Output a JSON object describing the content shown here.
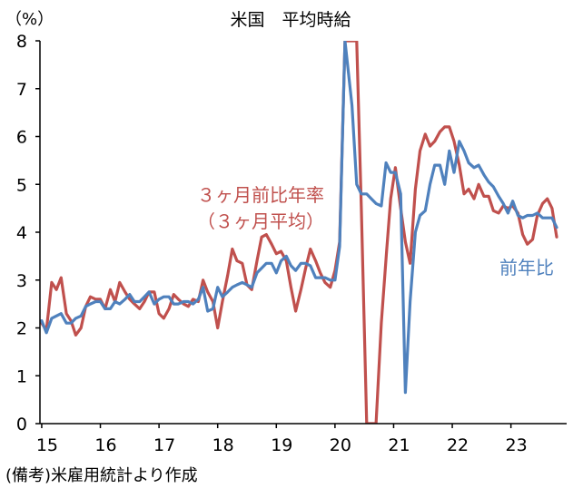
{
  "chart_data": {
    "type": "line",
    "title": "米国　平均時給",
    "ylabel": "（%）",
    "source_note": "(備考)米雇用統計より作成",
    "ylim": [
      0,
      8
    ],
    "yticks": [
      "0",
      "1",
      "2",
      "3",
      "4",
      "5",
      "6",
      "7",
      "8"
    ],
    "xlim": [
      2015,
      2023.95
    ],
    "xticks": [
      {
        "x": 2015,
        "label": "15"
      },
      {
        "x": 2016,
        "label": "16"
      },
      {
        "x": 2017,
        "label": "17"
      },
      {
        "x": 2018,
        "label": "18"
      },
      {
        "x": 2019,
        "label": "19"
      },
      {
        "x": 2020,
        "label": "20"
      },
      {
        "x": 2021,
        "label": "21"
      },
      {
        "x": 2022,
        "label": "22"
      },
      {
        "x": 2023,
        "label": "23"
      }
    ],
    "grid": false,
    "series": [
      {
        "name": "３ヶ月前比年率（３ヶ月平均）",
        "label_lines": [
          "３ヶ月前比年率",
          "（３ヶ月平均）"
        ],
        "color": "#C0504D",
        "points": [
          [
            2015.0,
            2.1
          ],
          [
            2015.08,
            1.95
          ],
          [
            2015.17,
            2.95
          ],
          [
            2015.25,
            2.8
          ],
          [
            2015.33,
            3.05
          ],
          [
            2015.42,
            2.3
          ],
          [
            2015.5,
            2.15
          ],
          [
            2015.58,
            1.85
          ],
          [
            2015.67,
            2.0
          ],
          [
            2015.75,
            2.45
          ],
          [
            2015.83,
            2.65
          ],
          [
            2015.92,
            2.6
          ],
          [
            2016.0,
            2.6
          ],
          [
            2016.08,
            2.4
          ],
          [
            2016.17,
            2.8
          ],
          [
            2016.25,
            2.55
          ],
          [
            2016.33,
            2.95
          ],
          [
            2016.42,
            2.75
          ],
          [
            2016.5,
            2.6
          ],
          [
            2016.58,
            2.5
          ],
          [
            2016.67,
            2.4
          ],
          [
            2016.75,
            2.55
          ],
          [
            2016.83,
            2.75
          ],
          [
            2016.92,
            2.75
          ],
          [
            2017.0,
            2.3
          ],
          [
            2017.08,
            2.2
          ],
          [
            2017.17,
            2.4
          ],
          [
            2017.25,
            2.7
          ],
          [
            2017.33,
            2.6
          ],
          [
            2017.42,
            2.5
          ],
          [
            2017.5,
            2.45
          ],
          [
            2017.58,
            2.6
          ],
          [
            2017.67,
            2.55
          ],
          [
            2017.75,
            3.0
          ],
          [
            2017.83,
            2.75
          ],
          [
            2017.92,
            2.55
          ],
          [
            2018.0,
            2.0
          ],
          [
            2018.08,
            2.55
          ],
          [
            2018.17,
            3.1
          ],
          [
            2018.25,
            3.65
          ],
          [
            2018.33,
            3.4
          ],
          [
            2018.42,
            3.35
          ],
          [
            2018.5,
            2.9
          ],
          [
            2018.58,
            2.8
          ],
          [
            2018.67,
            3.4
          ],
          [
            2018.75,
            3.9
          ],
          [
            2018.83,
            3.95
          ],
          [
            2018.92,
            3.75
          ],
          [
            2019.0,
            3.55
          ],
          [
            2019.08,
            3.6
          ],
          [
            2019.17,
            3.4
          ],
          [
            2019.25,
            2.85
          ],
          [
            2019.33,
            2.35
          ],
          [
            2019.42,
            2.8
          ],
          [
            2019.5,
            3.25
          ],
          [
            2019.58,
            3.65
          ],
          [
            2019.67,
            3.4
          ],
          [
            2019.75,
            3.15
          ],
          [
            2019.83,
            2.95
          ],
          [
            2019.92,
            2.85
          ],
          [
            2020.0,
            3.2
          ],
          [
            2020.08,
            3.8
          ],
          [
            2020.17,
            8.0
          ],
          [
            2020.29,
            8.0
          ],
          [
            2020.37,
            8.0
          ],
          [
            2020.45,
            4.5
          ],
          [
            2020.54,
            0.0
          ],
          [
            2020.7,
            0.0
          ],
          [
            2020.79,
            2.1
          ],
          [
            2020.88,
            3.6
          ],
          [
            2020.95,
            4.7
          ],
          [
            2021.03,
            5.35
          ],
          [
            2021.12,
            4.5
          ],
          [
            2021.2,
            3.8
          ],
          [
            2021.28,
            3.35
          ],
          [
            2021.37,
            4.9
          ],
          [
            2021.45,
            5.7
          ],
          [
            2021.54,
            6.05
          ],
          [
            2021.62,
            5.8
          ],
          [
            2021.7,
            5.9
          ],
          [
            2021.79,
            6.1
          ],
          [
            2021.87,
            6.2
          ],
          [
            2021.95,
            6.2
          ],
          [
            2022.03,
            5.9
          ],
          [
            2022.12,
            5.4
          ],
          [
            2022.2,
            4.8
          ],
          [
            2022.28,
            4.9
          ],
          [
            2022.37,
            4.7
          ],
          [
            2022.45,
            5.0
          ],
          [
            2022.54,
            4.75
          ],
          [
            2022.62,
            4.75
          ],
          [
            2022.7,
            4.45
          ],
          [
            2022.79,
            4.4
          ],
          [
            2022.87,
            4.55
          ],
          [
            2022.95,
            4.5
          ],
          [
            2023.03,
            4.55
          ],
          [
            2023.12,
            4.4
          ],
          [
            2023.2,
            3.95
          ],
          [
            2023.28,
            3.75
          ],
          [
            2023.37,
            3.85
          ],
          [
            2023.45,
            4.35
          ],
          [
            2023.54,
            4.6
          ],
          [
            2023.62,
            4.7
          ],
          [
            2023.7,
            4.5
          ],
          [
            2023.78,
            3.9
          ]
        ]
      },
      {
        "name": "前年比",
        "label_lines": [
          "前年比"
        ],
        "color": "#4F81BD",
        "points": [
          [
            2015.0,
            2.15
          ],
          [
            2015.08,
            1.9
          ],
          [
            2015.17,
            2.2
          ],
          [
            2015.25,
            2.25
          ],
          [
            2015.33,
            2.3
          ],
          [
            2015.42,
            2.1
          ],
          [
            2015.5,
            2.1
          ],
          [
            2015.58,
            2.2
          ],
          [
            2015.67,
            2.25
          ],
          [
            2015.75,
            2.45
          ],
          [
            2015.83,
            2.5
          ],
          [
            2015.92,
            2.55
          ],
          [
            2016.0,
            2.55
          ],
          [
            2016.08,
            2.4
          ],
          [
            2016.17,
            2.4
          ],
          [
            2016.25,
            2.55
          ],
          [
            2016.33,
            2.5
          ],
          [
            2016.42,
            2.6
          ],
          [
            2016.5,
            2.7
          ],
          [
            2016.58,
            2.55
          ],
          [
            2016.67,
            2.55
          ],
          [
            2016.75,
            2.65
          ],
          [
            2016.83,
            2.75
          ],
          [
            2016.92,
            2.5
          ],
          [
            2017.0,
            2.6
          ],
          [
            2017.08,
            2.65
          ],
          [
            2017.17,
            2.65
          ],
          [
            2017.25,
            2.5
          ],
          [
            2017.33,
            2.5
          ],
          [
            2017.42,
            2.55
          ],
          [
            2017.5,
            2.55
          ],
          [
            2017.58,
            2.5
          ],
          [
            2017.67,
            2.6
          ],
          [
            2017.75,
            2.85
          ],
          [
            2017.83,
            2.35
          ],
          [
            2017.92,
            2.4
          ],
          [
            2018.0,
            2.85
          ],
          [
            2018.08,
            2.65
          ],
          [
            2018.17,
            2.75
          ],
          [
            2018.25,
            2.85
          ],
          [
            2018.33,
            2.9
          ],
          [
            2018.42,
            2.95
          ],
          [
            2018.5,
            2.9
          ],
          [
            2018.58,
            2.85
          ],
          [
            2018.67,
            3.15
          ],
          [
            2018.75,
            3.25
          ],
          [
            2018.83,
            3.35
          ],
          [
            2018.92,
            3.35
          ],
          [
            2019.0,
            3.15
          ],
          [
            2019.08,
            3.4
          ],
          [
            2019.17,
            3.5
          ],
          [
            2019.25,
            3.3
          ],
          [
            2019.33,
            3.2
          ],
          [
            2019.42,
            3.35
          ],
          [
            2019.5,
            3.35
          ],
          [
            2019.58,
            3.3
          ],
          [
            2019.67,
            3.05
          ],
          [
            2019.75,
            3.05
          ],
          [
            2019.83,
            3.05
          ],
          [
            2019.92,
            3.0
          ],
          [
            2020.0,
            3.0
          ],
          [
            2020.08,
            3.7
          ],
          [
            2020.17,
            8.0
          ],
          [
            2020.29,
            6.65
          ],
          [
            2020.37,
            5.0
          ],
          [
            2020.45,
            4.8
          ],
          [
            2020.54,
            4.8
          ],
          [
            2020.62,
            4.7
          ],
          [
            2020.7,
            4.6
          ],
          [
            2020.79,
            4.55
          ],
          [
            2020.87,
            5.45
          ],
          [
            2020.95,
            5.25
          ],
          [
            2021.03,
            5.25
          ],
          [
            2021.12,
            4.8
          ],
          [
            2021.2,
            0.65
          ],
          [
            2021.28,
            2.55
          ],
          [
            2021.37,
            4.0
          ],
          [
            2021.45,
            4.35
          ],
          [
            2021.54,
            4.45
          ],
          [
            2021.62,
            5.0
          ],
          [
            2021.7,
            5.4
          ],
          [
            2021.79,
            5.4
          ],
          [
            2021.87,
            5.0
          ],
          [
            2021.95,
            5.7
          ],
          [
            2022.03,
            5.25
          ],
          [
            2022.12,
            5.9
          ],
          [
            2022.2,
            5.7
          ],
          [
            2022.28,
            5.45
          ],
          [
            2022.37,
            5.35
          ],
          [
            2022.45,
            5.4
          ],
          [
            2022.54,
            5.2
          ],
          [
            2022.62,
            5.05
          ],
          [
            2022.7,
            4.95
          ],
          [
            2022.79,
            4.75
          ],
          [
            2022.87,
            4.6
          ],
          [
            2022.95,
            4.4
          ],
          [
            2023.03,
            4.65
          ],
          [
            2023.12,
            4.35
          ],
          [
            2023.2,
            4.3
          ],
          [
            2023.28,
            4.35
          ],
          [
            2023.37,
            4.35
          ],
          [
            2023.45,
            4.4
          ],
          [
            2023.54,
            4.3
          ],
          [
            2023.62,
            4.3
          ],
          [
            2023.7,
            4.3
          ],
          [
            2023.78,
            4.1
          ]
        ]
      }
    ]
  }
}
